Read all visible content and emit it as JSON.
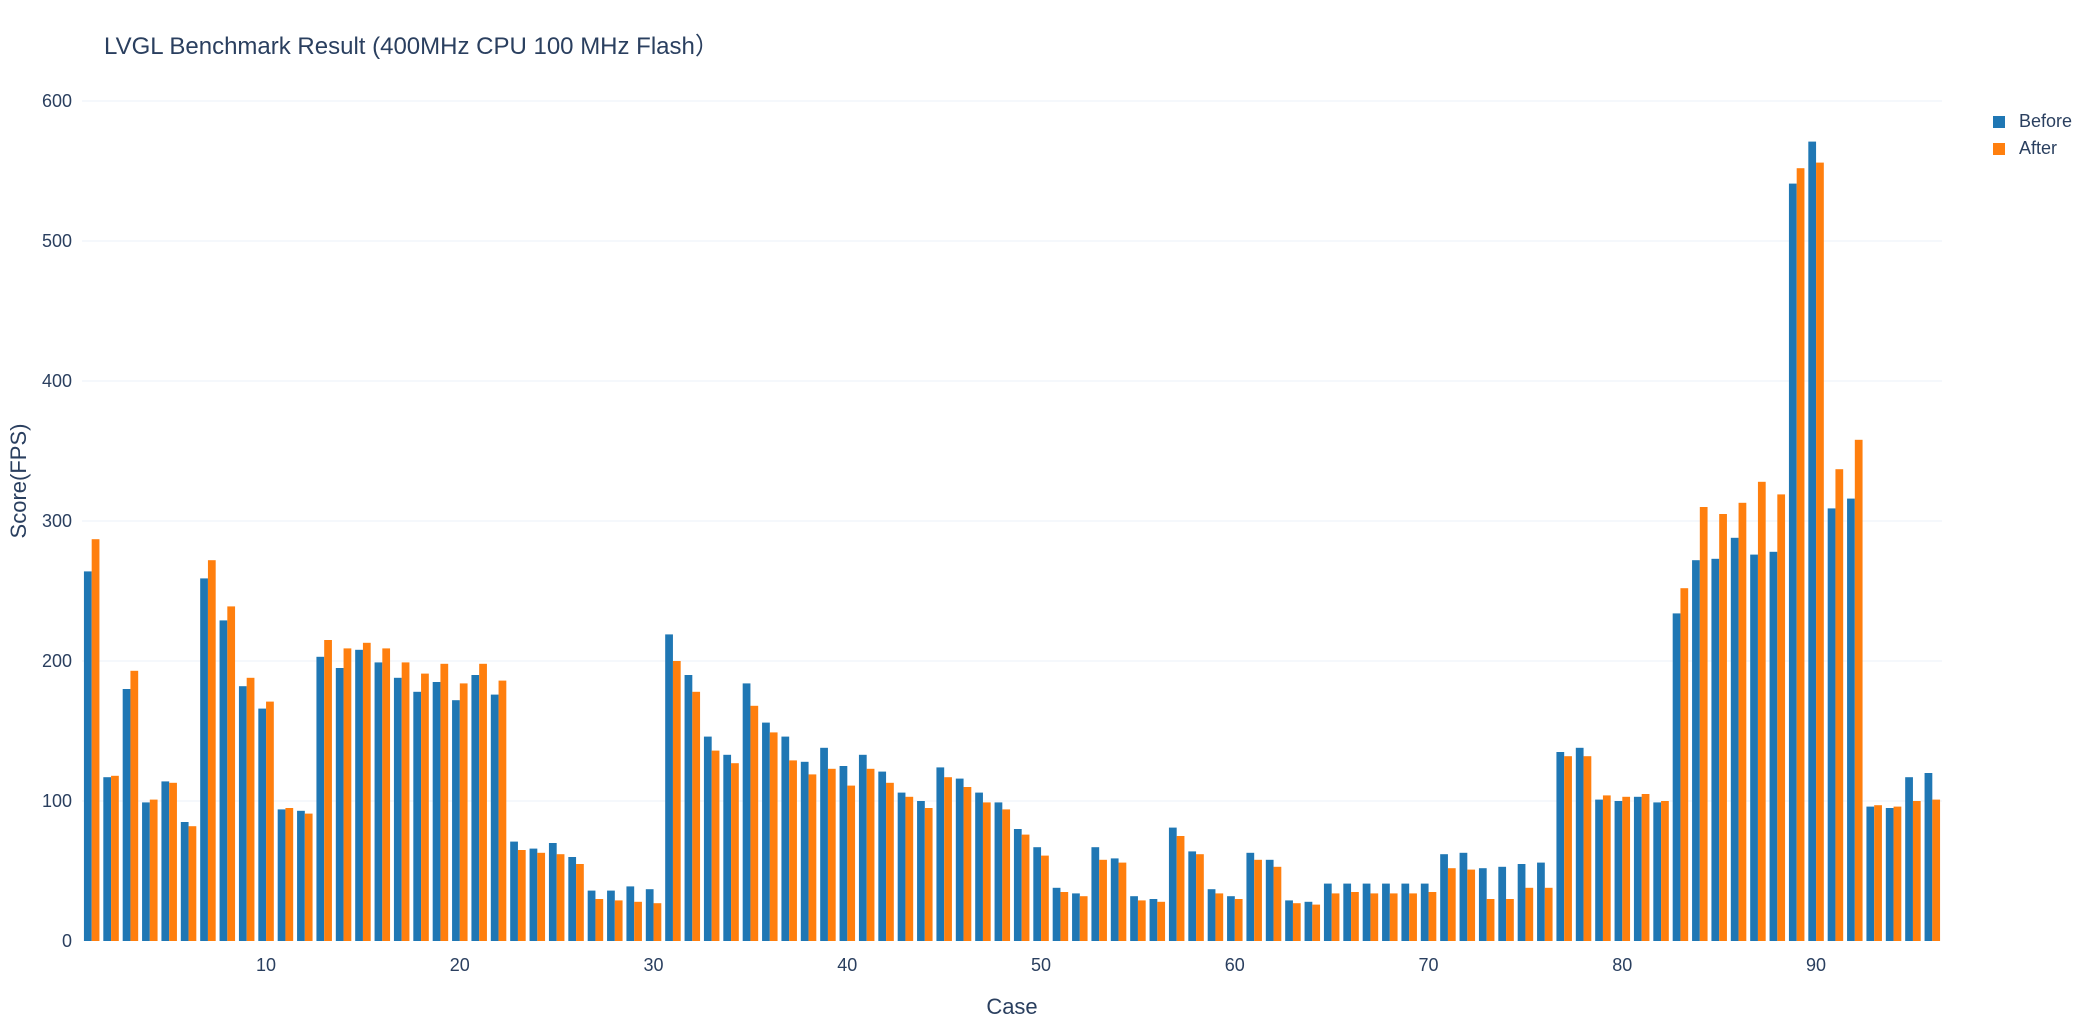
{
  "chart_data": {
    "type": "bar",
    "title": "LVGL Benchmark Result (400MHz CPU 100 MHz Flash）",
    "xlabel": "Case",
    "ylabel": "Score(FPS)",
    "xlim": [
      0.5,
      96.5
    ],
    "ylim": [
      0,
      600
    ],
    "x_ticks": [
      10,
      20,
      30,
      40,
      50,
      60,
      70,
      80,
      90
    ],
    "y_ticks": [
      0,
      100,
      200,
      300,
      400,
      500,
      600
    ],
    "grid": true,
    "legend_position": "top-right",
    "x": [
      1,
      2,
      3,
      4,
      5,
      6,
      7,
      8,
      9,
      10,
      11,
      12,
      13,
      14,
      15,
      16,
      17,
      18,
      19,
      20,
      21,
      22,
      23,
      24,
      25,
      26,
      27,
      28,
      29,
      30,
      31,
      32,
      33,
      34,
      35,
      36,
      37,
      38,
      39,
      40,
      41,
      42,
      43,
      44,
      45,
      46,
      47,
      48,
      49,
      50,
      51,
      52,
      53,
      54,
      55,
      56,
      57,
      58,
      59,
      60,
      61,
      62,
      63,
      64,
      65,
      66,
      67,
      68,
      69,
      70,
      71,
      72,
      73,
      74,
      75,
      76,
      77,
      78,
      79,
      80,
      81,
      82,
      83,
      84,
      85,
      86,
      87,
      88,
      89,
      90,
      91,
      92,
      93,
      94,
      95,
      96
    ],
    "series": [
      {
        "name": "Before",
        "color": "#1f77b4",
        "values": [
          264,
          117,
          180,
          99,
          114,
          85,
          259,
          229,
          182,
          166,
          94,
          93,
          203,
          195,
          208,
          199,
          188,
          178,
          185,
          172,
          190,
          176,
          71,
          66,
          70,
          60,
          36,
          36,
          39,
          37,
          219,
          190,
          146,
          133,
          184,
          156,
          146,
          128,
          138,
          125,
          133,
          121,
          106,
          100,
          124,
          116,
          106,
          99,
          80,
          67,
          38,
          34,
          67,
          59,
          32,
          30,
          81,
          64,
          37,
          32,
          63,
          58,
          29,
          28,
          41,
          41,
          41,
          41,
          41,
          41,
          62,
          63,
          52,
          53,
          55,
          56,
          135,
          138,
          101,
          100,
          103,
          99,
          234,
          272,
          273,
          288,
          276,
          278,
          541,
          571,
          309,
          316,
          96,
          95,
          117,
          120
        ]
      },
      {
        "name": "After",
        "color": "#ff7f0e",
        "values": [
          287,
          118,
          193,
          101,
          113,
          82,
          272,
          239,
          188,
          171,
          95,
          91,
          215,
          209,
          213,
          209,
          199,
          191,
          198,
          184,
          198,
          186,
          65,
          63,
          62,
          55,
          30,
          29,
          28,
          27,
          200,
          178,
          136,
          127,
          168,
          149,
          129,
          119,
          123,
          111,
          123,
          113,
          103,
          95,
          117,
          110,
          99,
          94,
          76,
          61,
          35,
          32,
          58,
          56,
          29,
          28,
          75,
          62,
          34,
          30,
          58,
          53,
          27,
          26,
          34,
          35,
          34,
          34,
          34,
          35,
          52,
          51,
          30,
          30,
          38,
          38,
          132,
          132,
          104,
          103,
          105,
          100,
          252,
          310,
          305,
          313,
          328,
          319,
          552,
          556,
          337,
          358,
          97,
          96,
          100,
          101
        ]
      }
    ]
  }
}
